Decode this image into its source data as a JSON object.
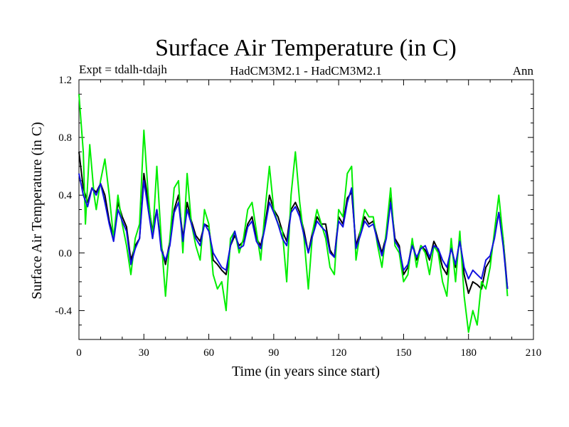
{
  "chart_data": {
    "type": "line",
    "title": "Surface Air Temperature (in C)",
    "subtitle_left": "Expt = tdalh-tdajh",
    "subtitle_center": "HadCM3M2.1 - HadCM3M2.1",
    "subtitle_right": "Ann",
    "xlabel": "Time (in years since start)",
    "ylabel": "Surface Air Temperature (in C)",
    "xlim": [
      0,
      210
    ],
    "ylim": [
      -0.6,
      1.2
    ],
    "xticks": [
      0,
      30,
      60,
      90,
      120,
      150,
      180,
      210
    ],
    "xtick_labels": [
      "0",
      "30",
      "60",
      "90",
      "120",
      "150",
      "180",
      "210"
    ],
    "yticks": [
      -0.4,
      0.0,
      0.4,
      0.8,
      1.2
    ],
    "ytick_labels": [
      "-0.4",
      "0.0",
      "0.4",
      "0.8",
      "1.2"
    ],
    "series": [
      {
        "name": "black",
        "color": "#000000",
        "points": [
          [
            0,
            0.7
          ],
          [
            2,
            0.45
          ],
          [
            4,
            0.35
          ],
          [
            6,
            0.45
          ],
          [
            8,
            0.42
          ],
          [
            10,
            0.48
          ],
          [
            12,
            0.4
          ],
          [
            14,
            0.22
          ],
          [
            16,
            0.1
          ],
          [
            18,
            0.35
          ],
          [
            20,
            0.25
          ],
          [
            22,
            0.18
          ],
          [
            24,
            -0.05
          ],
          [
            26,
            0.05
          ],
          [
            28,
            0.1
          ],
          [
            30,
            0.55
          ],
          [
            32,
            0.35
          ],
          [
            34,
            0.15
          ],
          [
            36,
            0.3
          ],
          [
            38,
            0.05
          ],
          [
            40,
            -0.08
          ],
          [
            42,
            0.08
          ],
          [
            44,
            0.3
          ],
          [
            46,
            0.4
          ],
          [
            48,
            0.1
          ],
          [
            50,
            0.35
          ],
          [
            52,
            0.22
          ],
          [
            54,
            0.12
          ],
          [
            56,
            0.08
          ],
          [
            58,
            0.2
          ],
          [
            60,
            0.18
          ],
          [
            62,
            -0.05
          ],
          [
            64,
            -0.08
          ],
          [
            66,
            -0.12
          ],
          [
            68,
            -0.15
          ],
          [
            70,
            0.05
          ],
          [
            72,
            0.12
          ],
          [
            74,
            0.05
          ],
          [
            76,
            0.08
          ],
          [
            78,
            0.2
          ],
          [
            80,
            0.25
          ],
          [
            82,
            0.1
          ],
          [
            84,
            0.05
          ],
          [
            86,
            0.2
          ],
          [
            88,
            0.4
          ],
          [
            90,
            0.3
          ],
          [
            92,
            0.25
          ],
          [
            94,
            0.15
          ],
          [
            96,
            0.08
          ],
          [
            98,
            0.3
          ],
          [
            100,
            0.35
          ],
          [
            102,
            0.28
          ],
          [
            104,
            0.15
          ],
          [
            106,
            0.0
          ],
          [
            108,
            0.15
          ],
          [
            110,
            0.25
          ],
          [
            112,
            0.2
          ],
          [
            114,
            0.2
          ],
          [
            116,
            0.02
          ],
          [
            118,
            -0.03
          ],
          [
            120,
            0.25
          ],
          [
            122,
            0.2
          ],
          [
            124,
            0.38
          ],
          [
            126,
            0.42
          ],
          [
            128,
            0.05
          ],
          [
            130,
            0.15
          ],
          [
            132,
            0.25
          ],
          [
            134,
            0.2
          ],
          [
            136,
            0.22
          ],
          [
            138,
            0.1
          ],
          [
            140,
            0.0
          ],
          [
            142,
            0.12
          ],
          [
            144,
            0.38
          ],
          [
            146,
            0.1
          ],
          [
            148,
            0.05
          ],
          [
            150,
            -0.15
          ],
          [
            152,
            -0.1
          ],
          [
            154,
            0.08
          ],
          [
            156,
            -0.05
          ],
          [
            158,
            0.05
          ],
          [
            160,
            0.02
          ],
          [
            162,
            -0.05
          ],
          [
            164,
            0.08
          ],
          [
            166,
            0.02
          ],
          [
            168,
            -0.1
          ],
          [
            170,
            -0.15
          ],
          [
            172,
            0.05
          ],
          [
            174,
            -0.1
          ],
          [
            176,
            0.1
          ],
          [
            178,
            -0.15
          ],
          [
            180,
            -0.28
          ],
          [
            182,
            -0.2
          ],
          [
            184,
            -0.22
          ],
          [
            186,
            -0.25
          ],
          [
            188,
            -0.1
          ],
          [
            190,
            -0.05
          ],
          [
            192,
            0.12
          ],
          [
            194,
            0.28
          ],
          [
            196,
            0.1
          ],
          [
            198,
            -0.25
          ]
        ]
      },
      {
        "name": "green",
        "color": "#00ee00",
        "points": [
          [
            0,
            1.1
          ],
          [
            2,
            0.7
          ],
          [
            3,
            0.2
          ],
          [
            5,
            0.75
          ],
          [
            7,
            0.4
          ],
          [
            8,
            0.3
          ],
          [
            10,
            0.5
          ],
          [
            12,
            0.65
          ],
          [
            14,
            0.4
          ],
          [
            16,
            0.1
          ],
          [
            18,
            0.4
          ],
          [
            20,
            0.2
          ],
          [
            22,
            0.05
          ],
          [
            24,
            -0.15
          ],
          [
            26,
            0.1
          ],
          [
            28,
            0.2
          ],
          [
            30,
            0.85
          ],
          [
            32,
            0.4
          ],
          [
            34,
            0.1
          ],
          [
            36,
            0.6
          ],
          [
            38,
            0.1
          ],
          [
            40,
            -0.3
          ],
          [
            42,
            0.1
          ],
          [
            44,
            0.45
          ],
          [
            46,
            0.5
          ],
          [
            48,
            0.0
          ],
          [
            50,
            0.55
          ],
          [
            52,
            0.2
          ],
          [
            54,
            0.05
          ],
          [
            56,
            -0.05
          ],
          [
            58,
            0.3
          ],
          [
            60,
            0.2
          ],
          [
            62,
            -0.15
          ],
          [
            64,
            -0.25
          ],
          [
            66,
            -0.2
          ],
          [
            68,
            -0.4
          ],
          [
            70,
            0.1
          ],
          [
            72,
            0.15
          ],
          [
            74,
            0.0
          ],
          [
            76,
            0.1
          ],
          [
            78,
            0.3
          ],
          [
            80,
            0.35
          ],
          [
            82,
            0.15
          ],
          [
            84,
            -0.05
          ],
          [
            86,
            0.3
          ],
          [
            88,
            0.6
          ],
          [
            90,
            0.3
          ],
          [
            92,
            0.2
          ],
          [
            94,
            0.15
          ],
          [
            96,
            -0.2
          ],
          [
            98,
            0.4
          ],
          [
            100,
            0.7
          ],
          [
            102,
            0.35
          ],
          [
            104,
            0.1
          ],
          [
            106,
            -0.25
          ],
          [
            108,
            0.15
          ],
          [
            110,
            0.3
          ],
          [
            112,
            0.2
          ],
          [
            114,
            0.1
          ],
          [
            116,
            -0.1
          ],
          [
            118,
            -0.15
          ],
          [
            120,
            0.3
          ],
          [
            122,
            0.25
          ],
          [
            124,
            0.55
          ],
          [
            126,
            0.6
          ],
          [
            128,
            -0.05
          ],
          [
            130,
            0.15
          ],
          [
            132,
            0.3
          ],
          [
            134,
            0.25
          ],
          [
            136,
            0.25
          ],
          [
            138,
            0.05
          ],
          [
            140,
            -0.1
          ],
          [
            142,
            0.15
          ],
          [
            144,
            0.45
          ],
          [
            146,
            0.05
          ],
          [
            148,
            0.0
          ],
          [
            150,
            -0.2
          ],
          [
            152,
            -0.15
          ],
          [
            154,
            0.1
          ],
          [
            156,
            -0.1
          ],
          [
            158,
            0.05
          ],
          [
            160,
            0.0
          ],
          [
            162,
            -0.15
          ],
          [
            164,
            0.05
          ],
          [
            166,
            0.0
          ],
          [
            168,
            -0.2
          ],
          [
            170,
            -0.3
          ],
          [
            172,
            0.1
          ],
          [
            174,
            -0.2
          ],
          [
            176,
            0.15
          ],
          [
            178,
            -0.3
          ],
          [
            180,
            -0.55
          ],
          [
            182,
            -0.4
          ],
          [
            184,
            -0.5
          ],
          [
            186,
            -0.2
          ],
          [
            188,
            -0.25
          ],
          [
            190,
            -0.1
          ],
          [
            192,
            0.15
          ],
          [
            194,
            0.4
          ],
          [
            196,
            0.1
          ],
          [
            198,
            -0.3
          ]
        ]
      },
      {
        "name": "blue",
        "color": "#1010e0",
        "points": [
          [
            0,
            0.55
          ],
          [
            2,
            0.4
          ],
          [
            4,
            0.32
          ],
          [
            6,
            0.45
          ],
          [
            8,
            0.4
          ],
          [
            10,
            0.48
          ],
          [
            12,
            0.35
          ],
          [
            14,
            0.2
          ],
          [
            16,
            0.08
          ],
          [
            18,
            0.3
          ],
          [
            20,
            0.22
          ],
          [
            22,
            0.15
          ],
          [
            24,
            -0.08
          ],
          [
            26,
            0.03
          ],
          [
            28,
            0.1
          ],
          [
            30,
            0.5
          ],
          [
            32,
            0.3
          ],
          [
            34,
            0.1
          ],
          [
            36,
            0.3
          ],
          [
            38,
            0.02
          ],
          [
            40,
            -0.05
          ],
          [
            42,
            0.05
          ],
          [
            44,
            0.28
          ],
          [
            46,
            0.35
          ],
          [
            48,
            0.08
          ],
          [
            50,
            0.3
          ],
          [
            52,
            0.2
          ],
          [
            54,
            0.1
          ],
          [
            56,
            0.05
          ],
          [
            58,
            0.2
          ],
          [
            60,
            0.15
          ],
          [
            62,
            0.0
          ],
          [
            64,
            -0.05
          ],
          [
            66,
            -0.1
          ],
          [
            68,
            -0.12
          ],
          [
            70,
            0.05
          ],
          [
            72,
            0.15
          ],
          [
            74,
            0.03
          ],
          [
            76,
            0.05
          ],
          [
            78,
            0.18
          ],
          [
            80,
            0.22
          ],
          [
            82,
            0.08
          ],
          [
            84,
            0.03
          ],
          [
            86,
            0.18
          ],
          [
            88,
            0.35
          ],
          [
            90,
            0.28
          ],
          [
            92,
            0.2
          ],
          [
            94,
            0.1
          ],
          [
            96,
            0.05
          ],
          [
            98,
            0.28
          ],
          [
            100,
            0.32
          ],
          [
            102,
            0.25
          ],
          [
            104,
            0.12
          ],
          [
            106,
            0.0
          ],
          [
            108,
            0.12
          ],
          [
            110,
            0.22
          ],
          [
            112,
            0.18
          ],
          [
            114,
            0.15
          ],
          [
            116,
            0.0
          ],
          [
            118,
            -0.03
          ],
          [
            120,
            0.22
          ],
          [
            122,
            0.18
          ],
          [
            124,
            0.35
          ],
          [
            126,
            0.45
          ],
          [
            128,
            0.03
          ],
          [
            130,
            0.12
          ],
          [
            132,
            0.22
          ],
          [
            134,
            0.18
          ],
          [
            136,
            0.2
          ],
          [
            138,
            0.08
          ],
          [
            140,
            -0.02
          ],
          [
            142,
            0.1
          ],
          [
            144,
            0.35
          ],
          [
            146,
            0.08
          ],
          [
            148,
            0.03
          ],
          [
            150,
            -0.12
          ],
          [
            152,
            -0.08
          ],
          [
            154,
            0.05
          ],
          [
            156,
            -0.03
          ],
          [
            158,
            0.03
          ],
          [
            160,
            0.05
          ],
          [
            162,
            -0.03
          ],
          [
            164,
            0.05
          ],
          [
            166,
            0.03
          ],
          [
            168,
            -0.05
          ],
          [
            170,
            -0.1
          ],
          [
            172,
            0.03
          ],
          [
            174,
            -0.08
          ],
          [
            176,
            0.08
          ],
          [
            178,
            -0.1
          ],
          [
            180,
            -0.18
          ],
          [
            182,
            -0.12
          ],
          [
            184,
            -0.15
          ],
          [
            186,
            -0.18
          ],
          [
            188,
            -0.05
          ],
          [
            190,
            -0.02
          ],
          [
            192,
            0.1
          ],
          [
            194,
            0.28
          ],
          [
            196,
            0.05
          ],
          [
            198,
            -0.25
          ]
        ]
      }
    ]
  }
}
